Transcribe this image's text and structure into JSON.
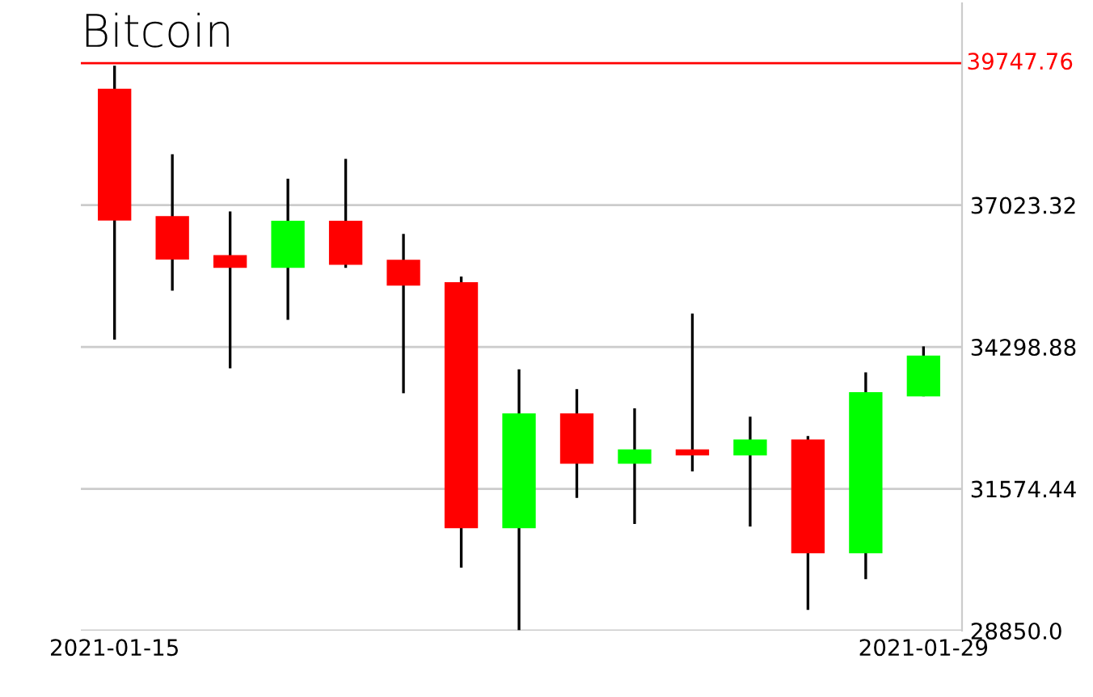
{
  "chart_data": {
    "type": "candlestick",
    "title": "Bitcoin",
    "x": [
      "2021-01-15",
      "2021-01-16",
      "2021-01-17",
      "2021-01-18",
      "2021-01-19",
      "2021-01-20",
      "2021-01-21",
      "2021-01-22",
      "2021-01-23",
      "2021-01-24",
      "2021-01-25",
      "2021-01-26",
      "2021-01-27",
      "2021-01-28",
      "2021-01-29"
    ],
    "ohlc": [
      [
        39225,
        39700,
        34440,
        36760
      ],
      [
        36780,
        38000,
        35380,
        36010
      ],
      [
        36030,
        36900,
        33890,
        35850
      ],
      [
        35850,
        37530,
        34820,
        36690
      ],
      [
        36690,
        37910,
        35820,
        35910
      ],
      [
        35940,
        36470,
        33410,
        35510
      ],
      [
        35510,
        35650,
        30060,
        30850
      ],
      [
        30850,
        33870,
        28860,
        32990
      ],
      [
        32990,
        33490,
        31400,
        32090
      ],
      [
        32090,
        33120,
        30900,
        32300
      ],
      [
        32300,
        34940,
        31910,
        32250
      ],
      [
        32250,
        32960,
        30850,
        32490
      ],
      [
        32490,
        32590,
        29250,
        30370
      ],
      [
        30370,
        33810,
        29840,
        33400
      ],
      [
        33380,
        34310,
        33350,
        34100
      ]
    ],
    "colors": [
      "#ff0000",
      "#ff0000",
      "#ff0000",
      "#00ff00",
      "#ff0000",
      "#ff0000",
      "#ff0000",
      "#00ff00",
      "#ff0000",
      "#00ff00",
      "#ff0000",
      "#00ff00",
      "#ff0000",
      "#00ff00",
      "#00ff00"
    ],
    "xlim": [
      "2021-01-14T10:00",
      "2021-01-29T16:00"
    ],
    "ylim": [
      28850,
      40900
    ],
    "yticks": [
      {
        "value": 28850,
        "label": "28850.0"
      },
      31574.44,
      34298.88,
      37023.32
    ],
    "xticks": [
      "2021-01-15",
      "2021-01-29"
    ],
    "ref_lines": [
      {
        "axis": "y",
        "value": 39747.76,
        "label": "39747.76",
        "color": "#ff0000"
      }
    ],
    "grid": "y"
  }
}
